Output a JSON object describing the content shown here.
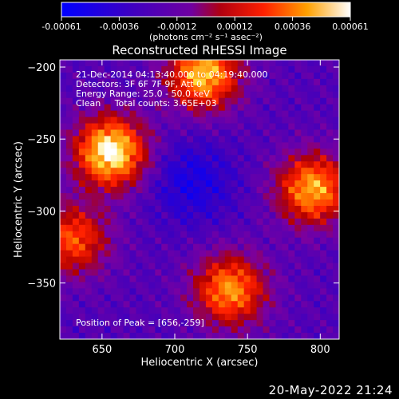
{
  "chart_data": {
    "type": "heatmap",
    "title": "Reconstructed RHESSI Image",
    "xlabel": "Heliocentric X (arcsec)",
    "ylabel": "Heliocentric Y (arcsec)",
    "xlim": [
      621,
      813
    ],
    "ylim": [
      -389,
      -195
    ],
    "xticks": [
      650,
      700,
      750,
      800
    ],
    "yticks": [
      -200,
      -250,
      -300,
      -350
    ],
    "colorbar": {
      "range": [
        -0.00061,
        0.00061
      ],
      "ticks": [
        "-0.00061",
        "-0.00036",
        "-0.00012",
        "0.00012",
        "0.00036",
        "0.00061"
      ],
      "unit_label": "(photons cm⁻² s⁻¹ asec⁻²)",
      "colors": [
        "#0000ff",
        "#3a00c0",
        "#7a00a0",
        "#b00000",
        "#ff2000",
        "#ff8000",
        "#ffe040",
        "#ffffff"
      ]
    },
    "annotations": [
      "21-Dec-2014 04:13:40.000 to 04:19:40.000",
      "Detectors: 3F 6F 7F 9F, Att 0",
      "Energy Range: 25.0 - 50.0 keV",
      "Clean     Total counts: 3.65E+03",
      "Position of Peak = [656,-259]"
    ],
    "peak": {
      "x": 656,
      "y": -259
    },
    "sources": [
      {
        "x": 656,
        "y": -259,
        "strength": 1.0
      },
      {
        "x": 720,
        "y": -205,
        "strength": 0.85
      },
      {
        "x": 795,
        "y": -285,
        "strength": 0.8
      },
      {
        "x": 738,
        "y": -355,
        "strength": 0.75
      },
      {
        "x": 630,
        "y": -320,
        "strength": 0.6
      }
    ]
  },
  "footer": {
    "date": "20-May-2022 21:24"
  }
}
